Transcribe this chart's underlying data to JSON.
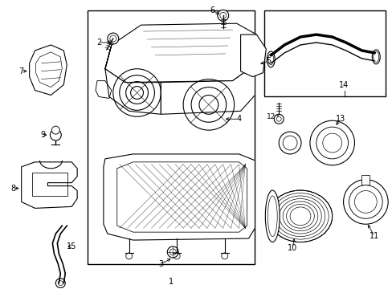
{
  "background": "#ffffff",
  "line_color": "#000000",
  "label_color": "#000000",
  "fig_width": 4.89,
  "fig_height": 3.6,
  "dpi": 100
}
